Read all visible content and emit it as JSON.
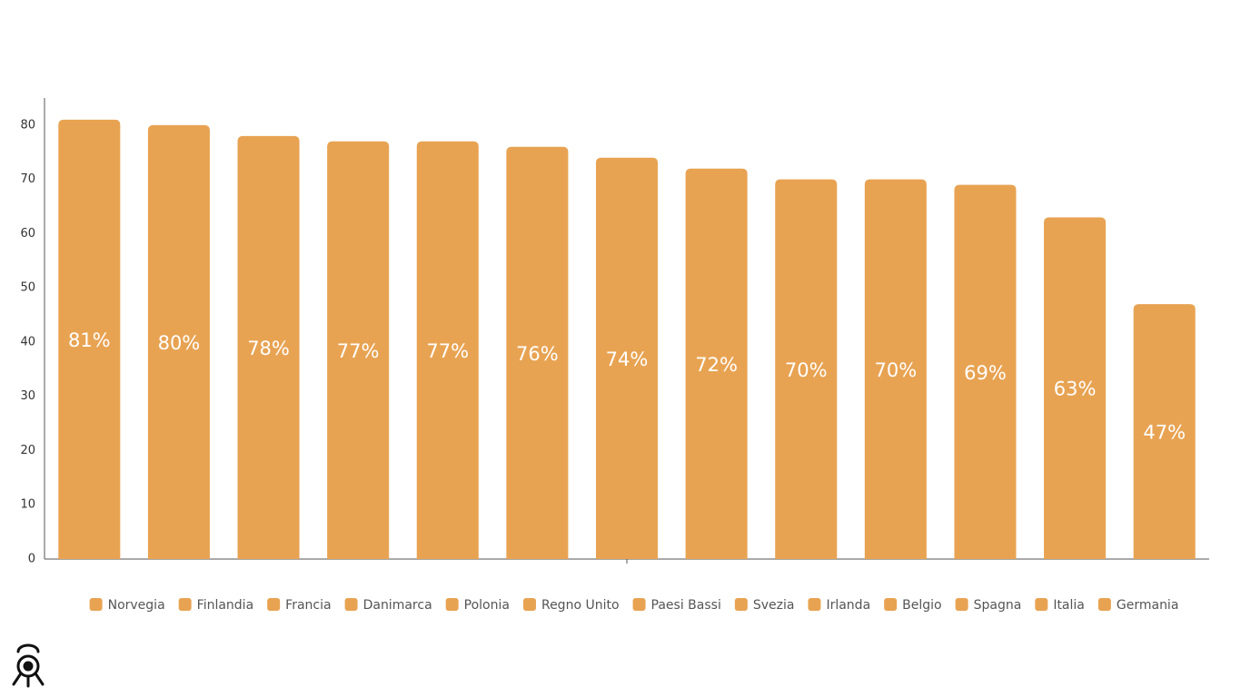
{
  "chart_data": {
    "type": "bar",
    "categories": [
      "Norvegia",
      "Finlandia",
      "Francia",
      "Danimarca",
      "Polonia",
      "Regno Unito",
      "Paesi Bassi",
      "Svezia",
      "Irlanda",
      "Belgio",
      "Spagna",
      "Italia",
      "Germania"
    ],
    "values": [
      81,
      80,
      78,
      77,
      77,
      76,
      74,
      72,
      70,
      70,
      69,
      63,
      47
    ],
    "value_labels": [
      "81%",
      "80%",
      "78%",
      "77%",
      "77%",
      "76%",
      "74%",
      "72%",
      "70%",
      "70%",
      "69%",
      "63%",
      "47%"
    ],
    "color": "#e8a352",
    "ylim": [
      0,
      85
    ],
    "yticks": [
      0,
      10,
      20,
      30,
      40,
      50,
      60,
      70,
      80
    ],
    "grid": false,
    "legend": "bottom"
  }
}
